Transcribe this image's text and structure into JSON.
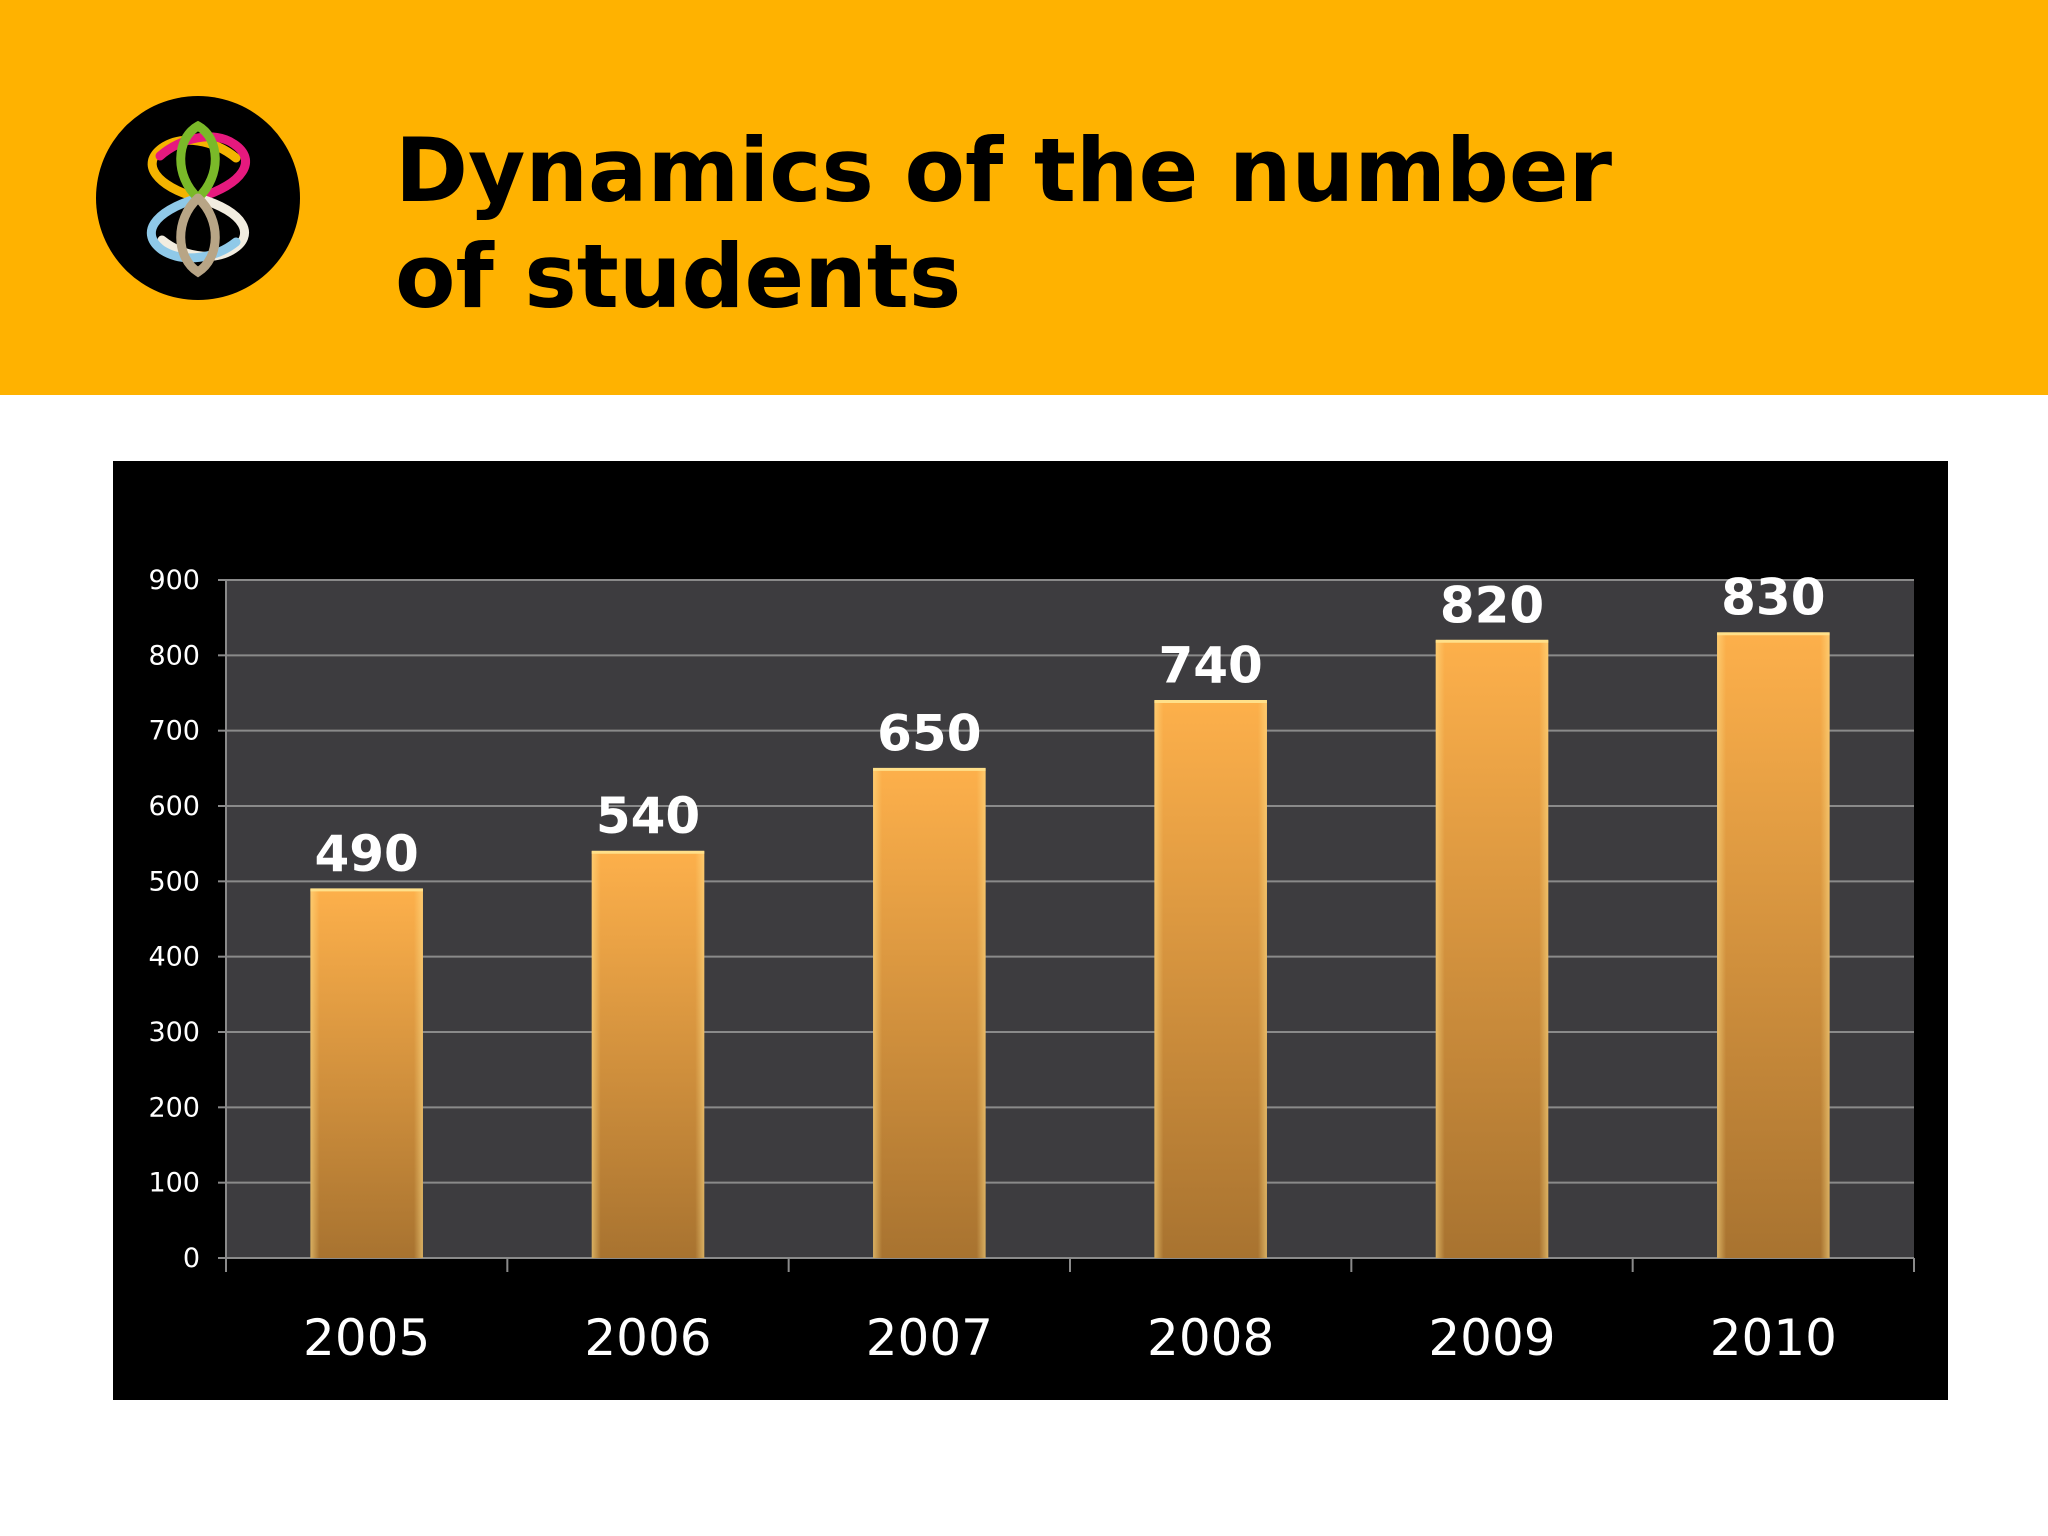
{
  "slide": {
    "title_line1": "Dynamics of the number",
    "title_line2": "of students",
    "logo_icon": "infinity-knot-logo-icon"
  },
  "colors": {
    "header_bg": "#FFB200",
    "chart_bg": "#000000",
    "plot_bg": "#3d3c3f",
    "bar_top": "#FDB04B",
    "bar_bottom": "#A87330",
    "bar_edge": "#FFE08A",
    "text_light": "#ffffff",
    "grid": "#8a8a8a"
  },
  "chart_data": {
    "type": "bar",
    "title": "",
    "xlabel": "",
    "ylabel": "",
    "categories": [
      "2005",
      "2006",
      "2007",
      "2008",
      "2009",
      "2010"
    ],
    "values": [
      490,
      540,
      650,
      740,
      820,
      830
    ],
    "data_labels": [
      "490",
      "540",
      "650",
      "740",
      "820",
      "830"
    ],
    "ylim": [
      0,
      900
    ],
    "yticks": [
      0,
      100,
      200,
      300,
      400,
      500,
      600,
      700,
      800,
      900
    ],
    "ytick_labels": [
      "0",
      "100",
      "200",
      "300",
      "400",
      "500",
      "600",
      "700",
      "800",
      "900"
    ],
    "grid": true,
    "legend": "none"
  }
}
